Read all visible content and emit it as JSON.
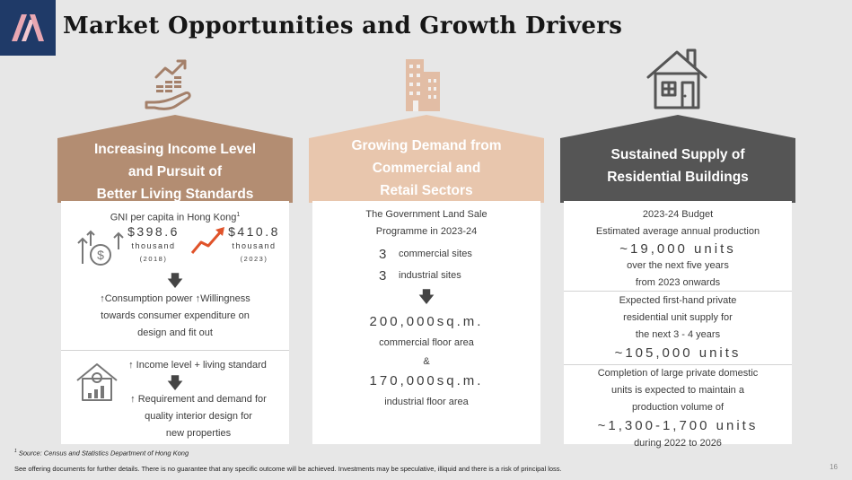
{
  "title": "Market Opportunities and Growth Drivers",
  "colors": {
    "col1": "#b38d72",
    "col2": "#e8c6ad",
    "col3": "#555555",
    "logo_bg": "#1f3a68"
  },
  "col1": {
    "icon": "hand-growth-chart-icon",
    "head": [
      "Increasing Income Level",
      "and Pursuit of",
      "Better Living Standards"
    ],
    "gni_title": "GNI per capita in Hong Kong",
    "gni_sup": "1",
    "v1": "$398.6",
    "v1_unit": "thousand",
    "v1_year": "(2018)",
    "v2": "$410.8",
    "v2_unit": "thousand",
    "v2_year": "(2023)",
    "consumption": "↑Consumption power  ↑Willingness",
    "consumption2": "towards consumer expenditure on",
    "consumption3": "design and fit out",
    "income": "↑ Income level +  living standard",
    "req1": "↑ Requirement and demand for",
    "req2": "quality interior design for",
    "req3": "new properties"
  },
  "col2": {
    "icon": "buildings-icon",
    "head": [
      "Growing Demand from",
      "Commercial and",
      "Retail Sectors"
    ],
    "l1": "The Government Land Sale",
    "l2": "Programme in 2023-24",
    "n1": "3",
    "n1_label": "commercial sites",
    "n2": "3",
    "n2_label": "industrial sites",
    "a1": "200,000sq.m.",
    "a1_label": "commercial floor area",
    "amp": "&",
    "a2": "170,000sq.m.",
    "a2_label": "industrial floor area"
  },
  "col3": {
    "icon": "house-icon",
    "head": [
      "Sustained Supply of",
      "Residential Buildings"
    ],
    "b1": "2023-24 Budget",
    "b2": "Estimated average annual production",
    "b3": "~19,000 units",
    "b4": "over the next five years",
    "b5": "from 2023 onwards",
    "c1": "Expected first-hand private",
    "c2": "residential unit supply for",
    "c3": "the next 3 - 4 years",
    "c4": "~105,000 units",
    "d1": "Completion of large private domestic",
    "d2": "units is expected to maintain a",
    "d3": "production volume of",
    "d4": "~1,300-1,700 units",
    "d5": "during 2022 to 2026"
  },
  "footnote_sup": "1",
  "footnote": "Source: Census and Statistics Department of Hong Kong",
  "disclaimer": "See offering documents for further details. There is no guarantee that any specific outcome will be achieved. Investments may be speculative, illiquid and there is a risk of principal loss.",
  "page_number": "16"
}
